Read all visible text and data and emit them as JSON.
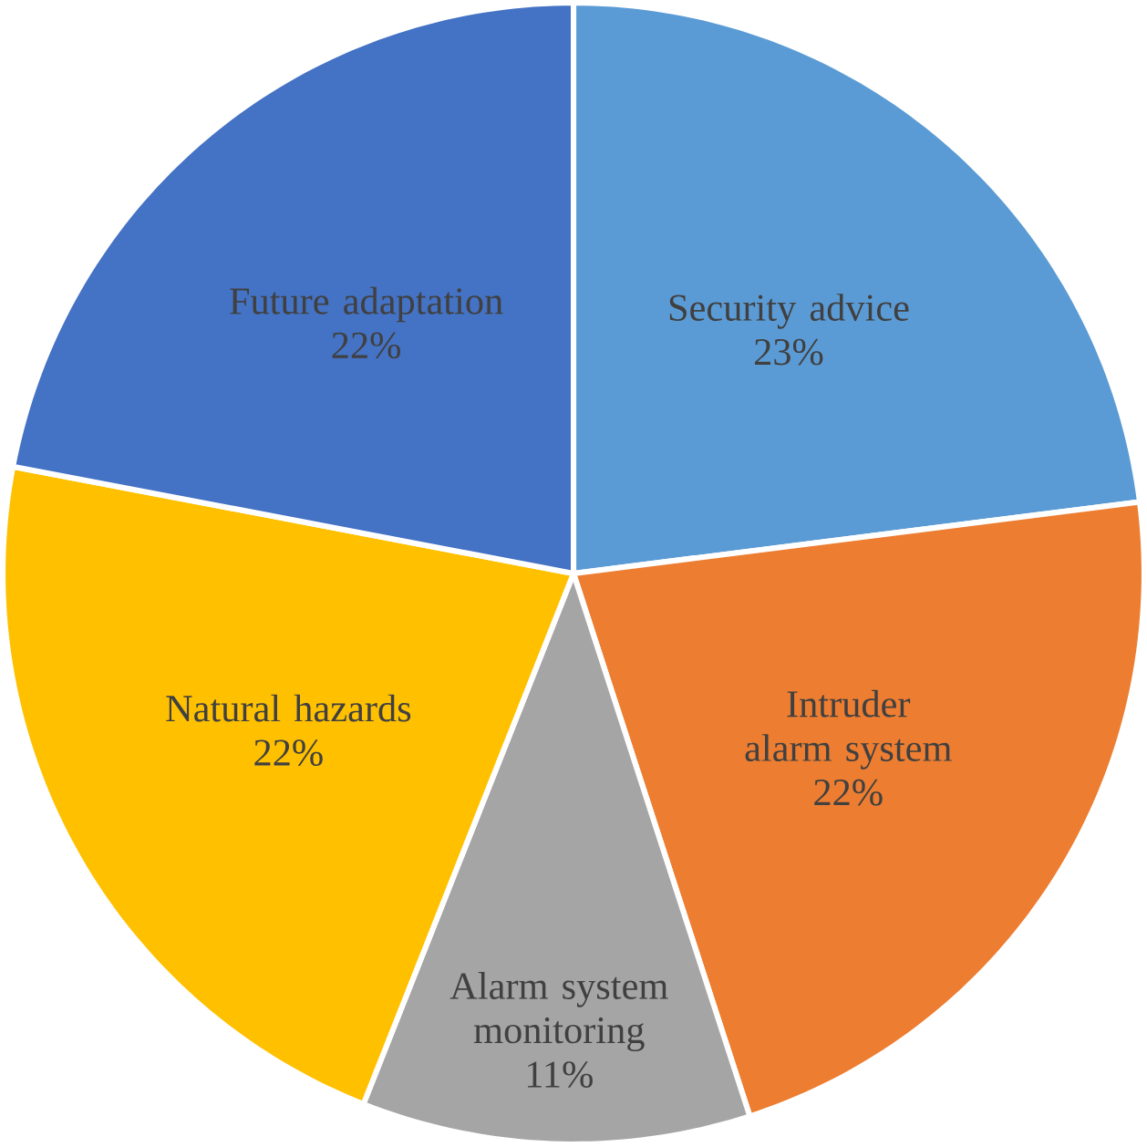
{
  "chart_data": {
    "type": "pie",
    "categories": [
      "Security advice",
      "Intruder alarm system",
      "Alarm system monitoring",
      "Natural hazards",
      "Future adaptation"
    ],
    "values": [
      23,
      22,
      11,
      22,
      22
    ],
    "colors": [
      "#5b9bd5",
      "#ed7d31",
      "#a5a5a5",
      "#ffc000",
      "#4472c4"
    ],
    "value_labels": [
      "23%",
      "22%",
      "11%",
      "22%",
      "22%"
    ]
  }
}
